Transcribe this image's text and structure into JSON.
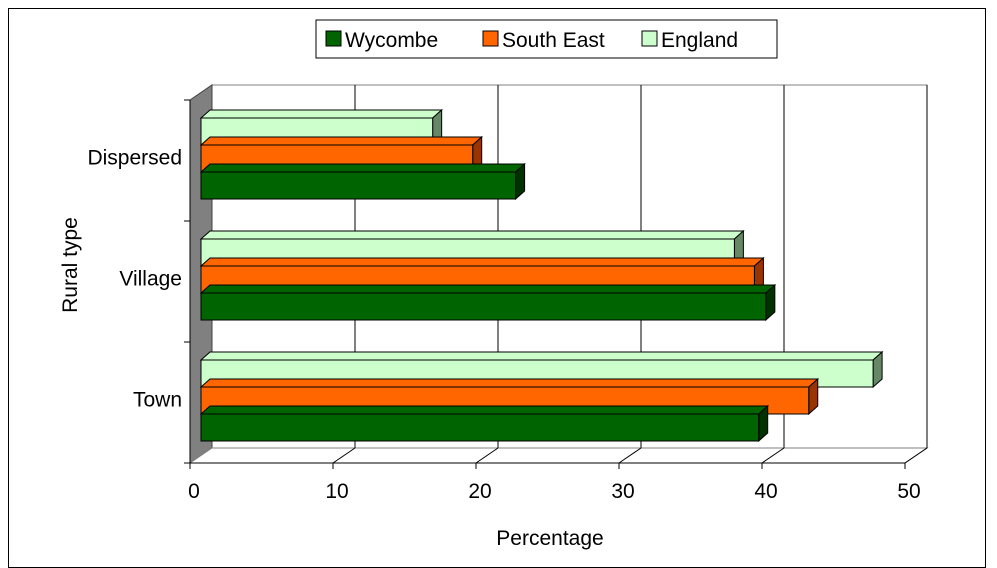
{
  "chart_data": {
    "type": "bar",
    "orientation": "horizontal",
    "style": "3d",
    "categories": [
      "Town",
      "Village",
      "Dispersed"
    ],
    "series": [
      {
        "name": "Wycombe",
        "color": "#006400",
        "side_color": "#003200",
        "values": [
          39,
          39.5,
          22
        ]
      },
      {
        "name": "South East",
        "color": "#FF6600",
        "side_color": "#993300",
        "values": [
          42.5,
          38.7,
          19
        ]
      },
      {
        "name": "England",
        "color": "#CCFFCC",
        "side_color": "#668866",
        "values": [
          47,
          37.3,
          16.2
        ]
      }
    ],
    "xlabel": "Percentage",
    "ylabel": "Rural type",
    "xlim": [
      0,
      50
    ],
    "x_ticks": [
      "0",
      "10",
      "20",
      "30",
      "40",
      "50"
    ],
    "grid": true,
    "legend_position": "top"
  }
}
